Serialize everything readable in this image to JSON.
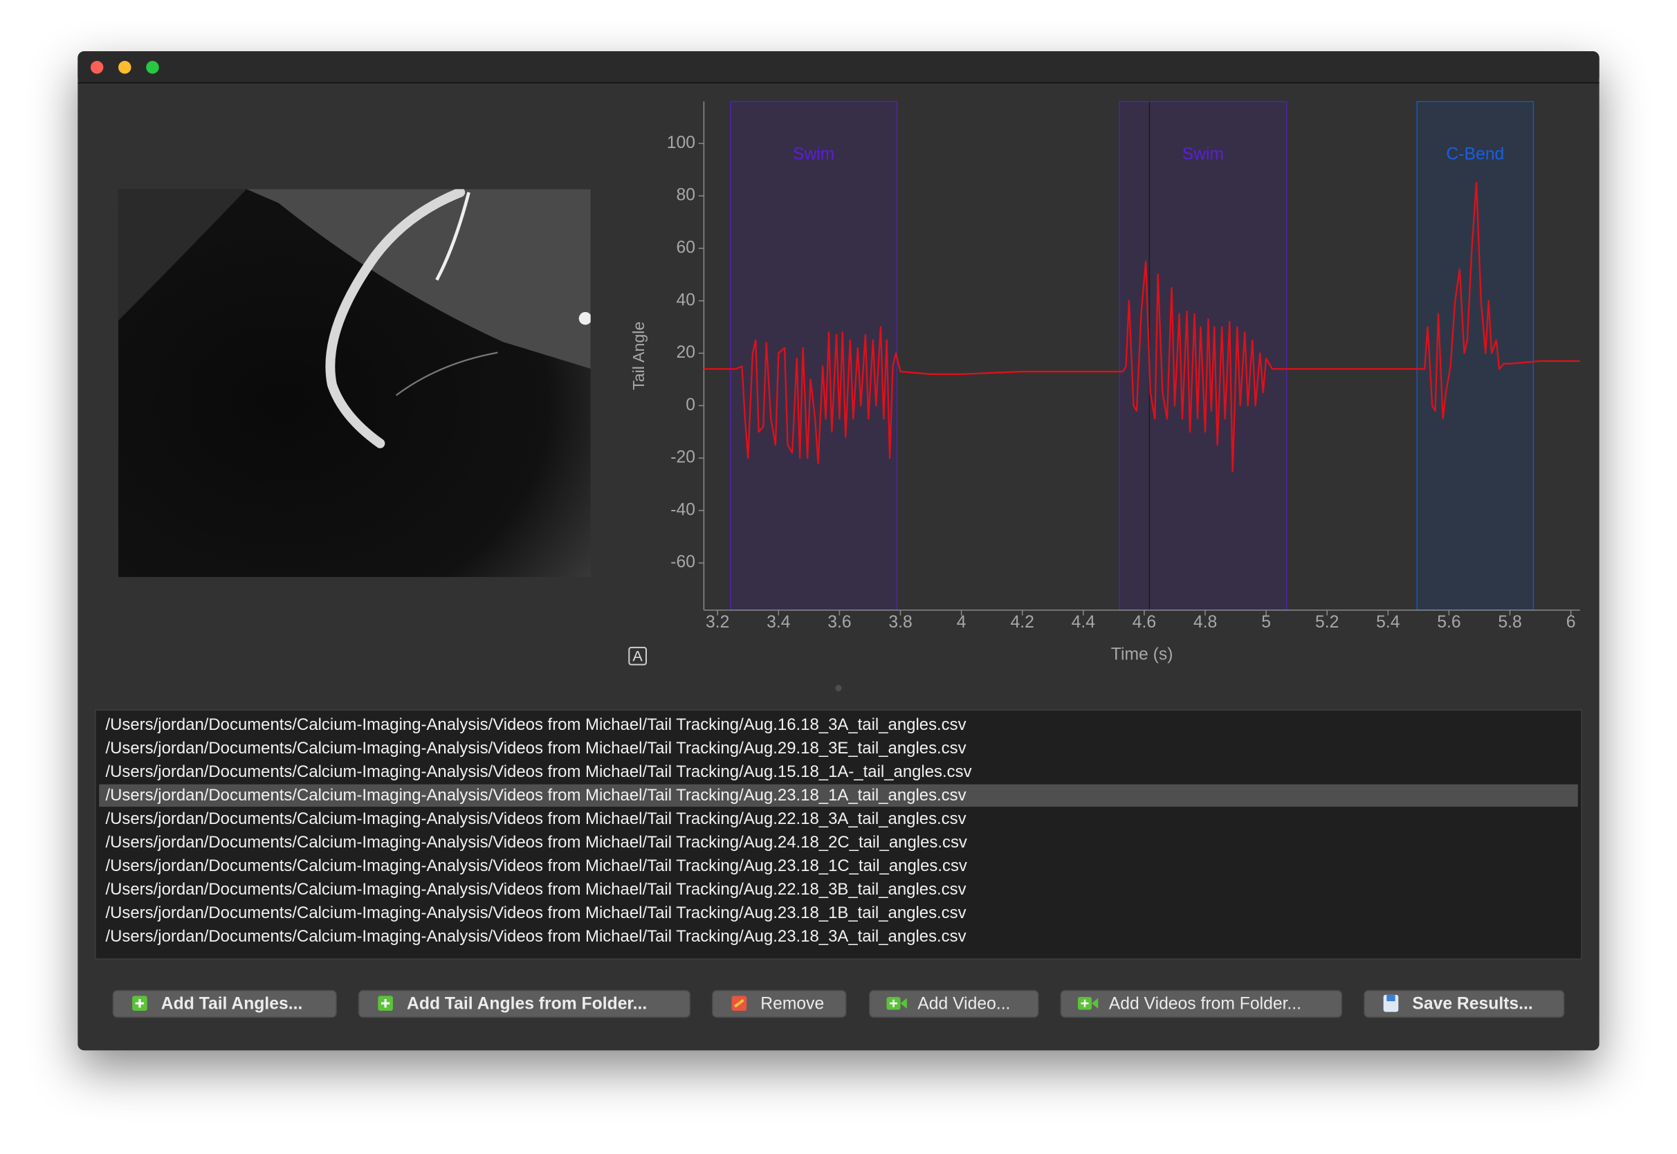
{
  "chart_data": {
    "type": "line",
    "y_label": "Tail Angle",
    "x_label": "Time (s)",
    "xlim": [
      3.155,
      6.03
    ],
    "ylim": [
      -78,
      116
    ],
    "xticks": [
      3.2,
      3.4,
      3.6,
      3.8,
      4,
      4.2,
      4.4,
      4.6,
      4.8,
      5,
      5.2,
      5.4,
      5.6,
      5.8,
      6
    ],
    "yticks": [
      -60,
      -40,
      -20,
      0,
      20,
      40,
      60,
      80,
      100
    ],
    "regions": [
      {
        "label": "Swim",
        "start": 3.242,
        "end": 3.789,
        "color": "#5a1fd6"
      },
      {
        "label": "Swim",
        "start": 4.519,
        "end": 5.067,
        "color": "#5a1fd6"
      },
      {
        "label": "C-Bend",
        "start": 5.495,
        "end": 5.877,
        "color": "#1a5fe0"
      }
    ],
    "cursor_x": 4.617,
    "series": [
      {
        "color": "#e0101a",
        "x": [
          3.155,
          3.26,
          3.28,
          3.29,
          3.3,
          3.315,
          3.325,
          3.335,
          3.35,
          3.36,
          3.375,
          3.39,
          3.4,
          3.42,
          3.43,
          3.445,
          3.46,
          3.47,
          3.48,
          3.495,
          3.505,
          3.52,
          3.53,
          3.545,
          3.555,
          3.565,
          3.575,
          3.59,
          3.6,
          3.61,
          3.62,
          3.635,
          3.645,
          3.66,
          3.67,
          3.685,
          3.695,
          3.71,
          3.72,
          3.735,
          3.745,
          3.755,
          3.765,
          3.775,
          3.785,
          3.8,
          3.9,
          4.0,
          4.2,
          4.4,
          4.53,
          4.54,
          4.55,
          4.565,
          4.575,
          4.59,
          4.605,
          4.62,
          4.635,
          4.645,
          4.66,
          4.675,
          4.69,
          4.7,
          4.715,
          4.725,
          4.74,
          4.75,
          4.765,
          4.775,
          4.785,
          4.8,
          4.81,
          4.82,
          4.83,
          4.84,
          4.855,
          4.865,
          4.88,
          4.89,
          4.905,
          4.915,
          4.93,
          4.94,
          4.955,
          4.965,
          4.98,
          4.99,
          5.0,
          5.02,
          5.2,
          5.4,
          5.5,
          5.52,
          5.53,
          5.545,
          5.555,
          5.565,
          5.58,
          5.59,
          5.605,
          5.62,
          5.635,
          5.65,
          5.66,
          5.675,
          5.69,
          5.705,
          5.72,
          5.73,
          5.74,
          5.755,
          5.765,
          5.78,
          5.8,
          5.9,
          6.03
        ],
        "values": [
          14,
          14,
          15,
          -5,
          -20,
          20,
          25,
          -10,
          -8,
          24,
          -5,
          -15,
          20,
          22,
          -15,
          -18,
          18,
          -20,
          22,
          -20,
          10,
          -5,
          -22,
          15,
          -5,
          28,
          -10,
          27,
          -5,
          28,
          -12,
          25,
          -5,
          22,
          0,
          27,
          -5,
          25,
          0,
          30,
          -5,
          25,
          -20,
          15,
          20,
          13,
          12,
          12,
          13,
          13,
          13,
          15,
          40,
          0,
          -2,
          35,
          55,
          5,
          -5,
          50,
          5,
          -5,
          45,
          0,
          35,
          -5,
          36,
          -10,
          35,
          -5,
          30,
          -10,
          33,
          -2,
          30,
          -15,
          30,
          -5,
          32,
          -25,
          30,
          0,
          28,
          0,
          25,
          0,
          20,
          5,
          18,
          14,
          14,
          14,
          14,
          14,
          30,
          0,
          -2,
          35,
          -5,
          5,
          15,
          40,
          52,
          20,
          25,
          60,
          85,
          40,
          20,
          40,
          20,
          25,
          14,
          16,
          16,
          17,
          17
        ]
      }
    ]
  },
  "autorange_label": "A",
  "file_list": {
    "selected": 2,
    "items": [
      "/Users/jordan/Documents/Calcium-Imaging-Analysis/Videos from Michael/Tail Tracking/Aug.16.18_3A_tail_angles.csv",
      "/Users/jordan/Documents/Calcium-Imaging-Analysis/Videos from Michael/Tail Tracking/Aug.29.18_3E_tail_angles.csv",
      "/Users/jordan/Documents/Calcium-Imaging-Analysis/Videos from Michael/Tail Tracking/Aug.15.18_1A-_tail_angles.csv",
      "/Users/jordan/Documents/Calcium-Imaging-Analysis/Videos from Michael/Tail Tracking/Aug.23.18_1A_tail_angles.csv",
      "/Users/jordan/Documents/Calcium-Imaging-Analysis/Videos from Michael/Tail Tracking/Aug.22.18_3A_tail_angles.csv",
      "/Users/jordan/Documents/Calcium-Imaging-Analysis/Videos from Michael/Tail Tracking/Aug.24.18_2C_tail_angles.csv",
      "/Users/jordan/Documents/Calcium-Imaging-Analysis/Videos from Michael/Tail Tracking/Aug.23.18_1C_tail_angles.csv",
      "/Users/jordan/Documents/Calcium-Imaging-Analysis/Videos from Michael/Tail Tracking/Aug.22.18_3B_tail_angles.csv",
      "/Users/jordan/Documents/Calcium-Imaging-Analysis/Videos from Michael/Tail Tracking/Aug.23.18_1B_tail_angles.csv",
      "/Users/jordan/Documents/Calcium-Imaging-Analysis/Videos from Michael/Tail Tracking/Aug.23.18_3A_tail_angles.csv"
    ]
  },
  "buttons": [
    {
      "label": "Add Tail Angles...",
      "icon": "add"
    },
    {
      "label": "Add Tail Angles from Folder...",
      "icon": "add"
    },
    {
      "label": "Remove",
      "icon": "remove"
    },
    {
      "label": "Add Video...",
      "icon": "video"
    },
    {
      "label": "Add Videos from Folder...",
      "icon": "video"
    },
    {
      "label": "Save Results...",
      "icon": "save"
    }
  ]
}
